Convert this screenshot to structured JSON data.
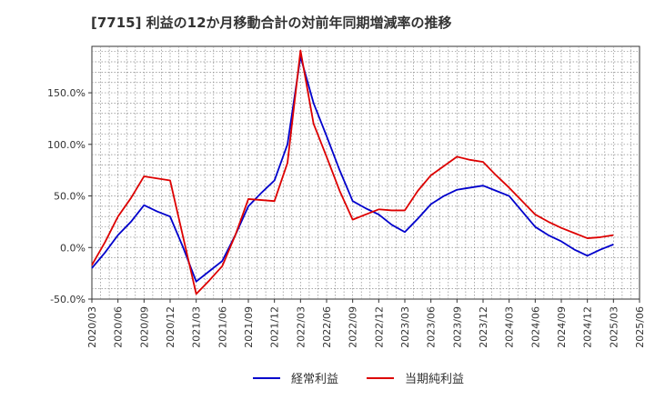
{
  "chart_data": {
    "type": "line",
    "title": "[7715]  利益の12か月移動合計の対前年同期増減率の推移",
    "xlabel": "",
    "ylabel": "",
    "ylim": [
      -50,
      195
    ],
    "yticks": [
      -50,
      0,
      50,
      100,
      150
    ],
    "ytick_labels": [
      "-50.0%",
      "0.0%",
      "50.0%",
      "100.0%",
      "150.0%"
    ],
    "x_tick_labels": [
      "2020/03",
      "2020/06",
      "2020/09",
      "2020/12",
      "2021/03",
      "2021/06",
      "2021/09",
      "2021/12",
      "2022/03",
      "2022/06",
      "2022/09",
      "2022/12",
      "2023/03",
      "2023/06",
      "2023/09",
      "2023/12",
      "2024/03",
      "2024/06",
      "2024/09",
      "2024/12",
      "2025/03",
      "2025/06"
    ],
    "grid": true,
    "legend_position": "bottom-center",
    "series": [
      {
        "name": "経常利益",
        "color": "#0000cc",
        "values": [
          [
            0,
            -20
          ],
          [
            1,
            -5
          ],
          [
            2,
            12
          ],
          [
            3,
            25
          ],
          [
            4,
            41
          ],
          [
            5,
            35
          ],
          [
            6,
            30
          ],
          [
            7,
            0
          ],
          [
            8,
            -33
          ],
          [
            9,
            -23
          ],
          [
            10,
            -13
          ],
          [
            11,
            12
          ],
          [
            12,
            40
          ],
          [
            13,
            53
          ],
          [
            14,
            65
          ],
          [
            15,
            100
          ],
          [
            16,
            185
          ],
          [
            17,
            140
          ],
          [
            18,
            108
          ],
          [
            19,
            75
          ],
          [
            20,
            45
          ],
          [
            21,
            38
          ],
          [
            22,
            32
          ],
          [
            23,
            22
          ],
          [
            24,
            15
          ],
          [
            25,
            28
          ],
          [
            26,
            42
          ],
          [
            27,
            50
          ],
          [
            28,
            56
          ],
          [
            29,
            58
          ],
          [
            30,
            60
          ],
          [
            31,
            55
          ],
          [
            32,
            50
          ],
          [
            33,
            35
          ],
          [
            34,
            20
          ],
          [
            35,
            12
          ],
          [
            36,
            6
          ],
          [
            37,
            -2
          ],
          [
            38,
            -8
          ],
          [
            39,
            -2
          ],
          [
            40,
            3
          ]
        ]
      },
      {
        "name": "当期純利益",
        "color": "#dd0000",
        "values": [
          [
            0,
            -17
          ],
          [
            1,
            5
          ],
          [
            2,
            30
          ],
          [
            3,
            48
          ],
          [
            4,
            69
          ],
          [
            5,
            67
          ],
          [
            6,
            65
          ],
          [
            7,
            10
          ],
          [
            8,
            -45
          ],
          [
            9,
            -32
          ],
          [
            10,
            -18
          ],
          [
            11,
            12
          ],
          [
            12,
            47
          ],
          [
            13,
            46
          ],
          [
            14,
            45
          ],
          [
            15,
            82
          ],
          [
            16,
            191
          ],
          [
            17,
            120
          ],
          [
            18,
            88
          ],
          [
            19,
            55
          ],
          [
            20,
            27
          ],
          [
            21,
            32
          ],
          [
            22,
            37
          ],
          [
            23,
            36
          ],
          [
            24,
            36
          ],
          [
            25,
            55
          ],
          [
            26,
            70
          ],
          [
            27,
            79
          ],
          [
            28,
            88
          ],
          [
            29,
            85
          ],
          [
            30,
            83
          ],
          [
            31,
            70
          ],
          [
            32,
            58
          ],
          [
            33,
            45
          ],
          [
            34,
            32
          ],
          [
            35,
            25
          ],
          [
            36,
            19
          ],
          [
            37,
            14
          ],
          [
            38,
            9
          ],
          [
            39,
            10
          ],
          [
            40,
            12
          ]
        ]
      }
    ]
  }
}
